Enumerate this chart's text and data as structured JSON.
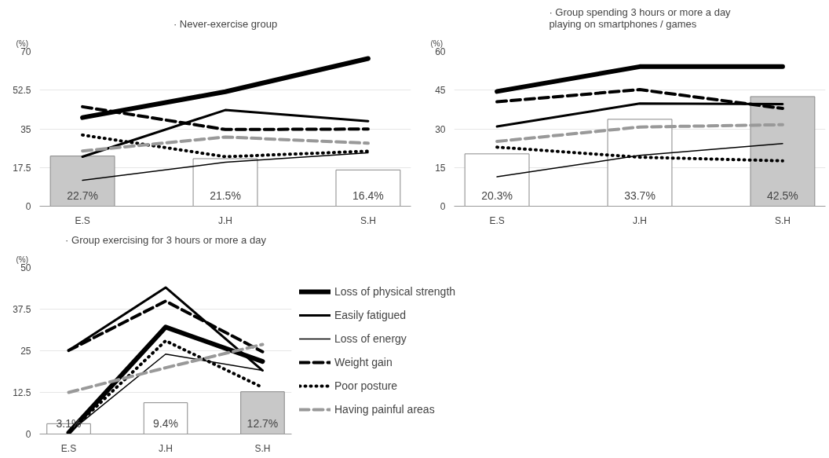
{
  "chart_data": [
    {
      "type": "line",
      "title": "· Never-exercise group",
      "ylabel": "(%)",
      "categories": [
        "E.S",
        "J.H",
        "S.H"
      ],
      "ylim": [
        0,
        70
      ],
      "yticks": [
        0,
        17.5,
        35,
        52.5,
        70
      ],
      "grid": "y",
      "legend": false,
      "series": [
        {
          "type": "bar",
          "colors": [
            "#c8c8c8",
            "#ffffff",
            "#ffffff"
          ],
          "values": [
            22.7,
            21.5,
            16.4
          ],
          "value_labels": [
            "22.7%",
            "21.5%",
            "16.4%"
          ]
        },
        {
          "color": "#000000",
          "line_style": "solid",
          "values": [
            40.1,
            51.8,
            66.8
          ]
        },
        {
          "color": "#000000",
          "line_style": "solid",
          "values": [
            22.4,
            43.5,
            38.5
          ]
        },
        {
          "color": "#000000",
          "line_style": "solid",
          "values": [
            11.7,
            19.9,
            24.2
          ]
        },
        {
          "color": "#000000",
          "line_style": "dashed",
          "values": [
            45.0,
            34.7,
            34.9
          ]
        },
        {
          "color": "#000000",
          "line_style": "dotted",
          "values": [
            32.2,
            22.4,
            24.9
          ]
        },
        {
          "color": "#999999",
          "line_style": "dashed",
          "values": [
            25.0,
            31.3,
            28.5
          ]
        }
      ]
    },
    {
      "type": "line",
      "title": "· Group spending 3 hours or more a day\nplaying on smartphones / games",
      "ylabel": "(%)",
      "categories": [
        "E.S",
        "J.H",
        "S.H"
      ],
      "ylim": [
        0,
        60
      ],
      "yticks": [
        0,
        15,
        30,
        45,
        60
      ],
      "grid": "y",
      "legend": false,
      "series": [
        {
          "type": "bar",
          "colors": [
            "#ffffff",
            "#ffffff",
            "#c8c8c8"
          ],
          "values": [
            20.3,
            33.7,
            42.5
          ],
          "value_labels": [
            "20.3%",
            "33.7%",
            "42.5%"
          ]
        },
        {
          "color": "#000000",
          "line_style": "solid",
          "values": [
            44.5,
            54.1,
            54.1
          ]
        },
        {
          "color": "#000000",
          "line_style": "solid",
          "values": [
            30.9,
            39.8,
            39.6
          ]
        },
        {
          "color": "#000000",
          "line_style": "solid",
          "values": [
            11.4,
            19.7,
            24.3
          ]
        },
        {
          "color": "#000000",
          "line_style": "dashed",
          "values": [
            40.5,
            45.2,
            37.9
          ]
        },
        {
          "color": "#000000",
          "line_style": "dotted",
          "values": [
            22.9,
            19.0,
            17.6
          ]
        },
        {
          "color": "#999999",
          "line_style": "dashed",
          "values": [
            25.1,
            30.7,
            31.6
          ]
        }
      ]
    },
    {
      "type": "line",
      "title": "· Group exercising for 3 hours or more a day",
      "ylabel": "(%)",
      "categories": [
        "E.S",
        "J.H",
        "S.H"
      ],
      "ylim": [
        0,
        50
      ],
      "yticks": [
        0,
        12.5,
        25,
        37.5,
        50
      ],
      "grid": "y",
      "legend": "right",
      "series": [
        {
          "type": "bar",
          "colors": [
            "#ffffff",
            "#ffffff",
            "#c8c8c8"
          ],
          "values": [
            3.1,
            9.4,
            12.7
          ],
          "value_labels": [
            "3.1%",
            "9.4%",
            "12.7%"
          ]
        },
        {
          "name": "Loss of physical strength",
          "color": "#000000",
          "line_style": "solid",
          "values": [
            0.4,
            32.1,
            21.8
          ]
        },
        {
          "name": "Easily fatigued",
          "color": "#000000",
          "line_style": "solid",
          "values": [
            25.1,
            44.0,
            19.1
          ]
        },
        {
          "name": "Loss of energy",
          "color": "#000000",
          "line_style": "solid",
          "values": [
            0.4,
            24.0,
            19.1
          ]
        },
        {
          "name": "Weight gain",
          "color": "#000000",
          "line_style": "dashed",
          "values": [
            25.1,
            39.9,
            24.7
          ]
        },
        {
          "name": "Poor posture",
          "color": "#000000",
          "line_style": "dotted",
          "values": [
            0.4,
            28.0,
            14.0
          ]
        },
        {
          "name": "Having painful areas",
          "color": "#999999",
          "line_style": "dashed",
          "values": [
            12.5,
            19.9,
            26.9
          ]
        }
      ]
    }
  ]
}
